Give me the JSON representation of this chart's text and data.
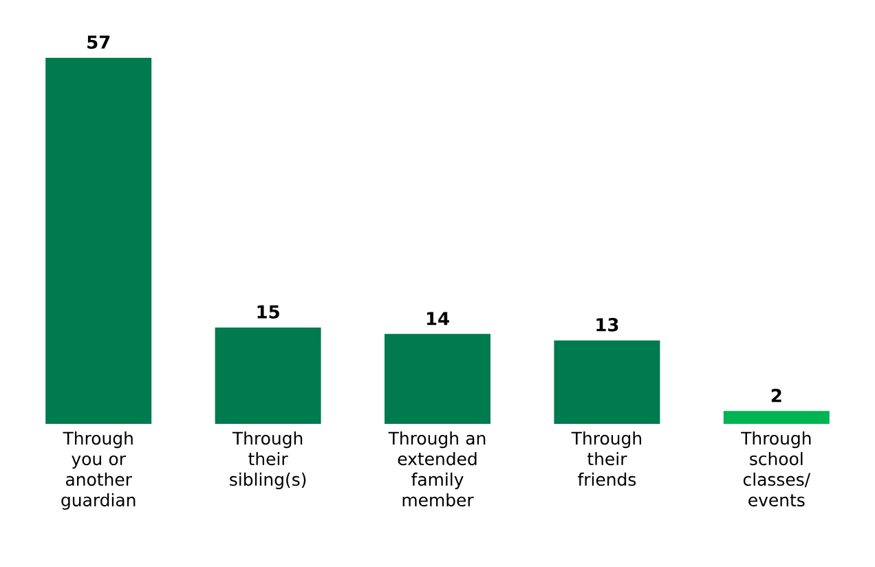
{
  "chart_data": {
    "type": "bar",
    "categories": [
      "Through you or another guardian",
      "Through their sibling(s)",
      "Through an extended family member",
      "Through their friends",
      "Through school classes/ events"
    ],
    "values": [
      57,
      15,
      14,
      13,
      2
    ],
    "colors": [
      "#007a4f",
      "#007a4f",
      "#007a4f",
      "#007a4f",
      "#00b451"
    ],
    "data_labels": true
  }
}
